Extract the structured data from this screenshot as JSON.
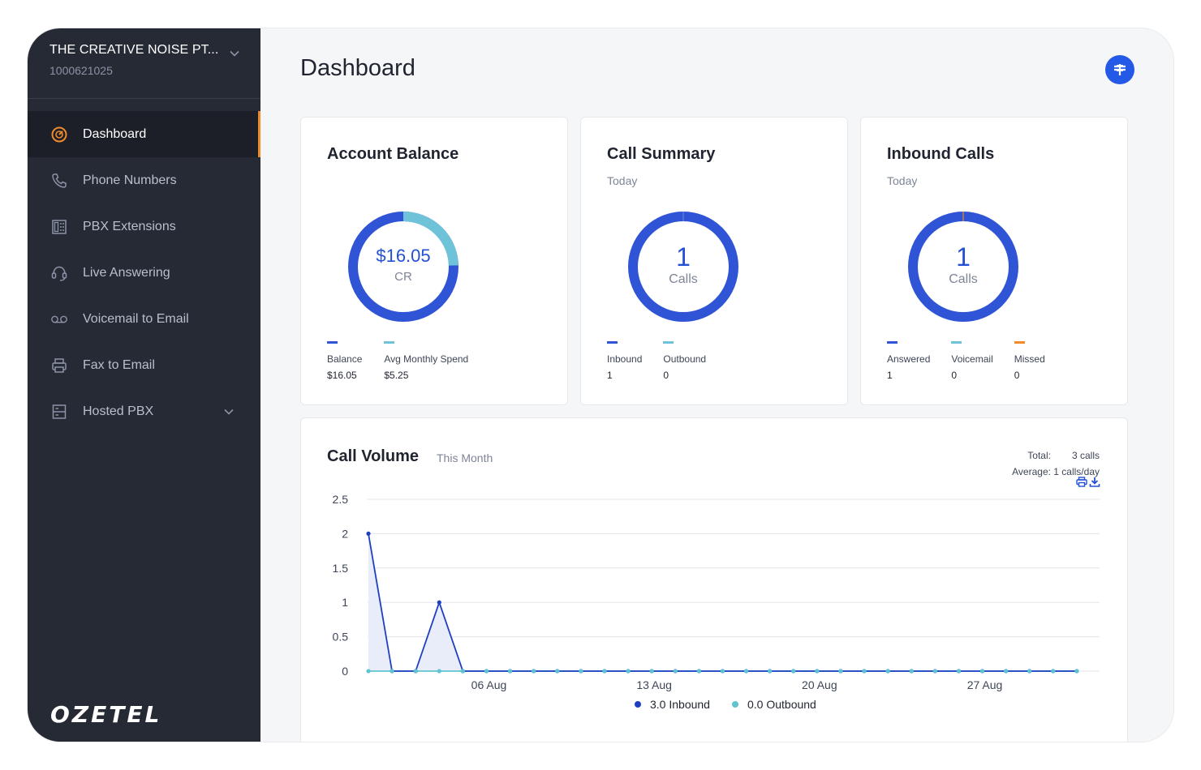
{
  "sidebar": {
    "org_name": "THE CREATIVE NOISE PT...",
    "org_id": "1000621025",
    "items": [
      {
        "label": "Dashboard",
        "icon": "speedometer-icon"
      },
      {
        "label": "Phone Numbers",
        "icon": "phone-icon"
      },
      {
        "label": "PBX Extensions",
        "icon": "pbx-icon"
      },
      {
        "label": "Live Answering",
        "icon": "headset-icon"
      },
      {
        "label": "Voicemail to Email",
        "icon": "voicemail-icon"
      },
      {
        "label": "Fax to Email",
        "icon": "printer-icon"
      },
      {
        "label": "Hosted PBX",
        "icon": "server-icon"
      }
    ],
    "logo": "OZETEL"
  },
  "header": {
    "title": "Dashboard"
  },
  "account_balance": {
    "title": "Account Balance",
    "amount": "$16.05",
    "unit": "CR",
    "legend": [
      {
        "label": "Balance",
        "value": "$16.05",
        "color": "#2f54d6"
      },
      {
        "label": "Avg Monthly Spend",
        "value": "$5.25",
        "color": "#6ec3d8"
      }
    ],
    "balance_share": 0.754
  },
  "call_summary": {
    "title": "Call Summary",
    "subtitle": "Today",
    "count": "1",
    "unit": "Calls",
    "legend": [
      {
        "label": "Inbound",
        "value": "1",
        "color": "#2f54d6"
      },
      {
        "label": "Outbound",
        "value": "0",
        "color": "#6ec3d8"
      }
    ]
  },
  "inbound_calls": {
    "title": "Inbound Calls",
    "subtitle": "Today",
    "count": "1",
    "unit": "Calls",
    "legend": [
      {
        "label": "Answered",
        "value": "1",
        "color": "#2f54d6"
      },
      {
        "label": "Voicemail",
        "value": "0",
        "color": "#6ec3d8"
      },
      {
        "label": "Missed",
        "value": "0",
        "color": "#f08a2a"
      }
    ]
  },
  "call_volume": {
    "title": "Call Volume",
    "subtitle": "This Month",
    "total_label": "Total:",
    "total_value": "3 calls",
    "average_label": "Average:",
    "average_value": "1 calls/day"
  },
  "chart_data": {
    "type": "area",
    "ylim": [
      0,
      2.5
    ],
    "yticks": [
      "2.5",
      "2",
      "1.5",
      "1",
      "0.5",
      "0"
    ],
    "xtick_labels": [
      {
        "label": "06 Aug",
        "index": 5
      },
      {
        "label": "13 Aug",
        "index": 12
      },
      {
        "label": "20 Aug",
        "index": 19
      },
      {
        "label": "27 Aug",
        "index": 26
      }
    ],
    "x": [
      "01 Aug",
      "02 Aug",
      "03 Aug",
      "04 Aug",
      "05 Aug",
      "06 Aug",
      "07 Aug",
      "08 Aug",
      "09 Aug",
      "10 Aug",
      "11 Aug",
      "12 Aug",
      "13 Aug",
      "14 Aug",
      "15 Aug",
      "16 Aug",
      "17 Aug",
      "18 Aug",
      "19 Aug",
      "20 Aug",
      "21 Aug",
      "22 Aug",
      "23 Aug",
      "24 Aug",
      "25 Aug",
      "26 Aug",
      "27 Aug",
      "28 Aug",
      "29 Aug",
      "30 Aug",
      "31 Aug"
    ],
    "series": [
      {
        "name": "Inbound",
        "legend": "3.0 Inbound",
        "color": "#1e3fc0",
        "values": [
          2,
          0,
          0,
          1,
          0,
          0,
          0,
          0,
          0,
          0,
          0,
          0,
          0,
          0,
          0,
          0,
          0,
          0,
          0,
          0,
          0,
          0,
          0,
          0,
          0,
          0,
          0,
          0,
          0,
          0,
          0
        ]
      },
      {
        "name": "Outbound",
        "legend": "0.0 Outbound",
        "color": "#5fc4cf",
        "values": [
          0,
          0,
          0,
          0,
          0,
          0,
          0,
          0,
          0,
          0,
          0,
          0,
          0,
          0,
          0,
          0,
          0,
          0,
          0,
          0,
          0,
          0,
          0,
          0,
          0,
          0,
          0,
          0,
          0,
          0,
          0
        ]
      }
    ]
  }
}
